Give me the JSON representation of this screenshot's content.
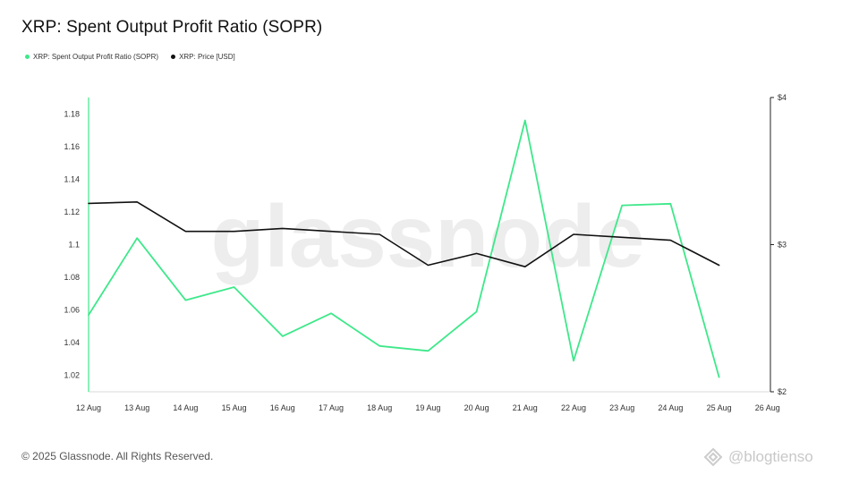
{
  "title": "XRP: Spent Output Profit Ratio (SOPR)",
  "legend": {
    "sopr_label": "XRP: Spent Output Profit Ratio (SOPR)",
    "price_label": "XRP: Price [USD]"
  },
  "watermark": "glassnode",
  "copyright": "© 2025 Glassnode. All Rights Reserved.",
  "brand_text": "@blogtienso",
  "colors": {
    "sopr": "#3ee88a",
    "price": "#111111",
    "axis": "#d8d8d8",
    "text": "#333333"
  },
  "chart_data": {
    "type": "line",
    "title": "XRP: Spent Output Profit Ratio (SOPR)",
    "categories": [
      "12 Aug",
      "13 Aug",
      "14 Aug",
      "15 Aug",
      "16 Aug",
      "17 Aug",
      "18 Aug",
      "19 Aug",
      "20 Aug",
      "21 Aug",
      "22 Aug",
      "23 Aug",
      "24 Aug",
      "25 Aug",
      "26 Aug"
    ],
    "series": [
      {
        "name": "XRP: Spent Output Profit Ratio (SOPR)",
        "axis": "left",
        "color": "#3ee88a",
        "values": [
          1.057,
          1.104,
          1.066,
          1.074,
          1.044,
          1.058,
          1.038,
          1.035,
          1.059,
          1.176,
          1.029,
          1.124,
          1.125,
          1.019,
          null
        ]
      },
      {
        "name": "XRP: Price [USD]",
        "axis": "right",
        "color": "#111111",
        "values": [
          3.28,
          3.29,
          3.09,
          3.09,
          3.11,
          3.09,
          3.07,
          2.86,
          2.94,
          2.85,
          3.07,
          3.05,
          3.03,
          2.86,
          null
        ]
      }
    ],
    "y_left": {
      "ylim": [
        1.01,
        1.19
      ],
      "ticks": [
        1.02,
        1.04,
        1.06,
        1.08,
        1.1,
        1.12,
        1.14,
        1.16,
        1.18
      ],
      "tick_labels": [
        "1.02",
        "1.04",
        "1.06",
        "1.08",
        "1.1",
        "1.12",
        "1.14",
        "1.16",
        "1.18"
      ]
    },
    "y_right": {
      "ylim": [
        2,
        4
      ],
      "ticks": [
        2,
        3,
        4
      ],
      "tick_labels": [
        "$2",
        "$3",
        "$4"
      ]
    },
    "grid": false,
    "legend_position": "top-left"
  }
}
